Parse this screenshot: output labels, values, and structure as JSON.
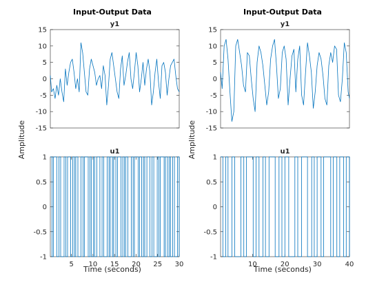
{
  "figure": {
    "titles": [
      "Input-Output Data",
      "Input-Output Data"
    ],
    "ylabel": "Amplitude",
    "xlabel": "Time (seconds)",
    "series_color": "#0072bd"
  },
  "chart_data": [
    {
      "type": "line",
      "column": "left",
      "channel": "y1",
      "title": "y1",
      "xlim": [
        0.1,
        30
      ],
      "ylim": [
        -15,
        15
      ],
      "xticks": [],
      "yticks": [
        -15,
        -10,
        -5,
        0,
        5,
        10,
        15
      ],
      "ytick_labels": [
        "-15",
        "-10",
        "-5",
        "0",
        "5",
        "10",
        "15"
      ],
      "x": [
        0.1,
        0.4,
        0.8,
        1.2,
        1.6,
        2,
        2.4,
        2.8,
        3.2,
        3.6,
        4,
        4.4,
        4.8,
        5.2,
        5.6,
        6,
        6.4,
        6.8,
        7.2,
        7.6,
        8,
        8.4,
        8.8,
        9.2,
        9.6,
        10,
        10.4,
        10.8,
        11.2,
        11.6,
        12,
        12.4,
        12.8,
        13.2,
        13.6,
        14,
        14.4,
        14.8,
        15.2,
        15.6,
        16,
        16.4,
        16.8,
        17.2,
        17.6,
        18,
        18.4,
        18.8,
        19.2,
        19.6,
        20,
        20.4,
        20.8,
        21.2,
        21.6,
        22,
        22.4,
        22.8,
        23.2,
        23.6,
        24,
        24.4,
        24.8,
        25.2,
        25.6,
        26,
        26.4,
        26.8,
        27.2,
        27.6,
        28,
        28.4,
        28.8,
        29.2,
        29.6,
        30
      ],
      "values": [
        1,
        -4,
        -3,
        -6,
        -2,
        -5,
        0,
        -4,
        -7,
        3,
        -2,
        2,
        5,
        6,
        2,
        -3,
        0,
        -4,
        11,
        8,
        2,
        -4,
        -5,
        3,
        6,
        4,
        2,
        -2,
        0,
        1,
        -3,
        4,
        1,
        -8,
        -2,
        6,
        8,
        4,
        0,
        -4,
        -6,
        3,
        7,
        -2,
        1,
        5,
        8,
        0,
        -3,
        2,
        8,
        4,
        -4,
        0,
        5,
        -2,
        3,
        6,
        2,
        -8,
        -4,
        2,
        6,
        -1,
        -6,
        4,
        5,
        2,
        -5,
        0,
        4,
        5,
        6,
        1,
        -3,
        -4
      ]
    },
    {
      "type": "line",
      "column": "right",
      "channel": "y1",
      "title": "y1",
      "xlim": [
        0.1,
        40
      ],
      "ylim": [
        -15,
        15
      ],
      "xticks": [],
      "yticks": [
        -15,
        -10,
        -5,
        0,
        5,
        10,
        15
      ],
      "ytick_labels": [
        "-15",
        "-10",
        "-5",
        "0",
        "5",
        "10",
        "15"
      ],
      "x": [
        0.1,
        0.6,
        1.2,
        1.8,
        2.4,
        3,
        3.6,
        4.2,
        4.8,
        5.4,
        6,
        6.6,
        7.2,
        7.8,
        8.4,
        9,
        9.6,
        10.2,
        10.8,
        11.4,
        12,
        12.6,
        13.2,
        13.8,
        14.4,
        15,
        15.6,
        16.2,
        16.8,
        17.4,
        18,
        18.6,
        19.2,
        19.8,
        20.4,
        21,
        21.6,
        22.2,
        22.8,
        23.4,
        24,
        24.6,
        25.2,
        25.8,
        26.4,
        27,
        27.6,
        28.2,
        28.8,
        29.4,
        30,
        30.6,
        31.2,
        31.8,
        32.4,
        33,
        33.6,
        34.2,
        34.8,
        35.4,
        36,
        36.6,
        37.2,
        37.8,
        38.4,
        39,
        39.6,
        40
      ],
      "values": [
        2,
        -3,
        10,
        12,
        6,
        -4,
        -13,
        -10,
        10,
        12,
        8,
        4,
        -2,
        -4,
        8,
        7,
        0,
        -6,
        -10,
        5,
        10,
        8,
        4,
        -2,
        -8,
        -4,
        6,
        10,
        12,
        4,
        -6,
        -3,
        8,
        10,
        6,
        -8,
        0,
        7,
        9,
        -4,
        6,
        10,
        -5,
        -8,
        2,
        11,
        7,
        2,
        -9,
        -4,
        4,
        8,
        6,
        1,
        -6,
        -8,
        4,
        8,
        5,
        10,
        9,
        -5,
        -7,
        0,
        11,
        8,
        -4,
        -6
      ]
    },
    {
      "type": "line",
      "column": "left",
      "channel": "u1",
      "title": "u1",
      "xlim": [
        0.1,
        30
      ],
      "ylim": [
        -1,
        1
      ],
      "xticks": [
        5,
        10,
        15,
        20,
        25,
        30
      ],
      "xtick_labels": [
        "5",
        "10",
        "15",
        "20",
        "25",
        "30"
      ],
      "yticks": [
        -1,
        -0.5,
        0,
        0.5,
        1
      ],
      "ytick_labels": [
        "-1",
        "-0.5",
        "0",
        "0.5",
        "1"
      ],
      "x": [
        0.1,
        0.5,
        0.8,
        1.3,
        1.6,
        2.1,
        2.5,
        2.8,
        3.3,
        3.7,
        4.1,
        4.4,
        4.8,
        5.3,
        5.7,
        6,
        6.5,
        6.9,
        7.2,
        7.7,
        8,
        8.5,
        8.9,
        9.3,
        9.6,
        10.1,
        10.4,
        10.9,
        11.3,
        11.6,
        12.1,
        12.5,
        12.8,
        13.3,
        13.7,
        14,
        14.5,
        14.8,
        15.3,
        15.7,
        16,
        16.5,
        16.9,
        17.3,
        17.6,
        18.1,
        18.4,
        18.9,
        19.3,
        19.6,
        20.1,
        20.5,
        20.8,
        21.3,
        21.7,
        22,
        22.5,
        22.9,
        23.2,
        23.7,
        24.1,
        24.4,
        24.9,
        25.3,
        25.6,
        26.1,
        26.5,
        26.8,
        27.3,
        27.7,
        28,
        28.5,
        28.9,
        29.2,
        29.6,
        30
      ],
      "values": [
        1,
        -1,
        1,
        1,
        -1,
        1,
        -1,
        -1,
        1,
        -1,
        1,
        1,
        -1,
        1,
        -1,
        1,
        -1,
        -1,
        1,
        -1,
        1,
        1,
        -1,
        1,
        -1,
        1,
        -1,
        1,
        1,
        -1,
        1,
        -1,
        -1,
        1,
        -1,
        1,
        -1,
        1,
        -1,
        1,
        1,
        -1,
        1,
        -1,
        1,
        -1,
        -1,
        1,
        -1,
        1,
        1,
        -1,
        1,
        -1,
        1,
        -1,
        1,
        1,
        -1,
        1,
        -1,
        -1,
        1,
        -1,
        1,
        1,
        -1,
        1,
        -1,
        1,
        -1,
        1,
        -1,
        -1,
        1,
        -1
      ]
    },
    {
      "type": "line",
      "column": "right",
      "channel": "u1",
      "title": "u1",
      "xlim": [
        0.1,
        40
      ],
      "ylim": [
        -1,
        1
      ],
      "xticks": [
        10,
        20,
        30,
        40
      ],
      "xtick_labels": [
        "10",
        "20",
        "30",
        "40"
      ],
      "yticks": [
        -1,
        -0.5,
        0,
        0.5,
        1
      ],
      "ytick_labels": [
        "-1",
        "-0.5",
        "0",
        "0.5",
        "1"
      ],
      "x": [
        0.1,
        0.8,
        1.7,
        2.4,
        3.6,
        4.5,
        5.2,
        6.4,
        7.3,
        8.1,
        9,
        10.2,
        11.1,
        12,
        13.2,
        14,
        15.1,
        16.3,
        17,
        18.2,
        19.1,
        20,
        21.2,
        22,
        23.1,
        24,
        25.2,
        26.1,
        27,
        28.3,
        29.1,
        30,
        31.2,
        32,
        33.1,
        34.2,
        35,
        36.1,
        37,
        38.2,
        39,
        40
      ],
      "values": [
        1,
        -1,
        1,
        -1,
        1,
        -1,
        -1,
        1,
        -1,
        1,
        1,
        -1,
        1,
        -1,
        1,
        -1,
        1,
        1,
        -1,
        1,
        -1,
        1,
        -1,
        -1,
        1,
        -1,
        1,
        1,
        -1,
        1,
        -1,
        1,
        -1,
        1,
        1,
        -1,
        1,
        -1,
        1,
        -1,
        1,
        -1
      ]
    }
  ]
}
